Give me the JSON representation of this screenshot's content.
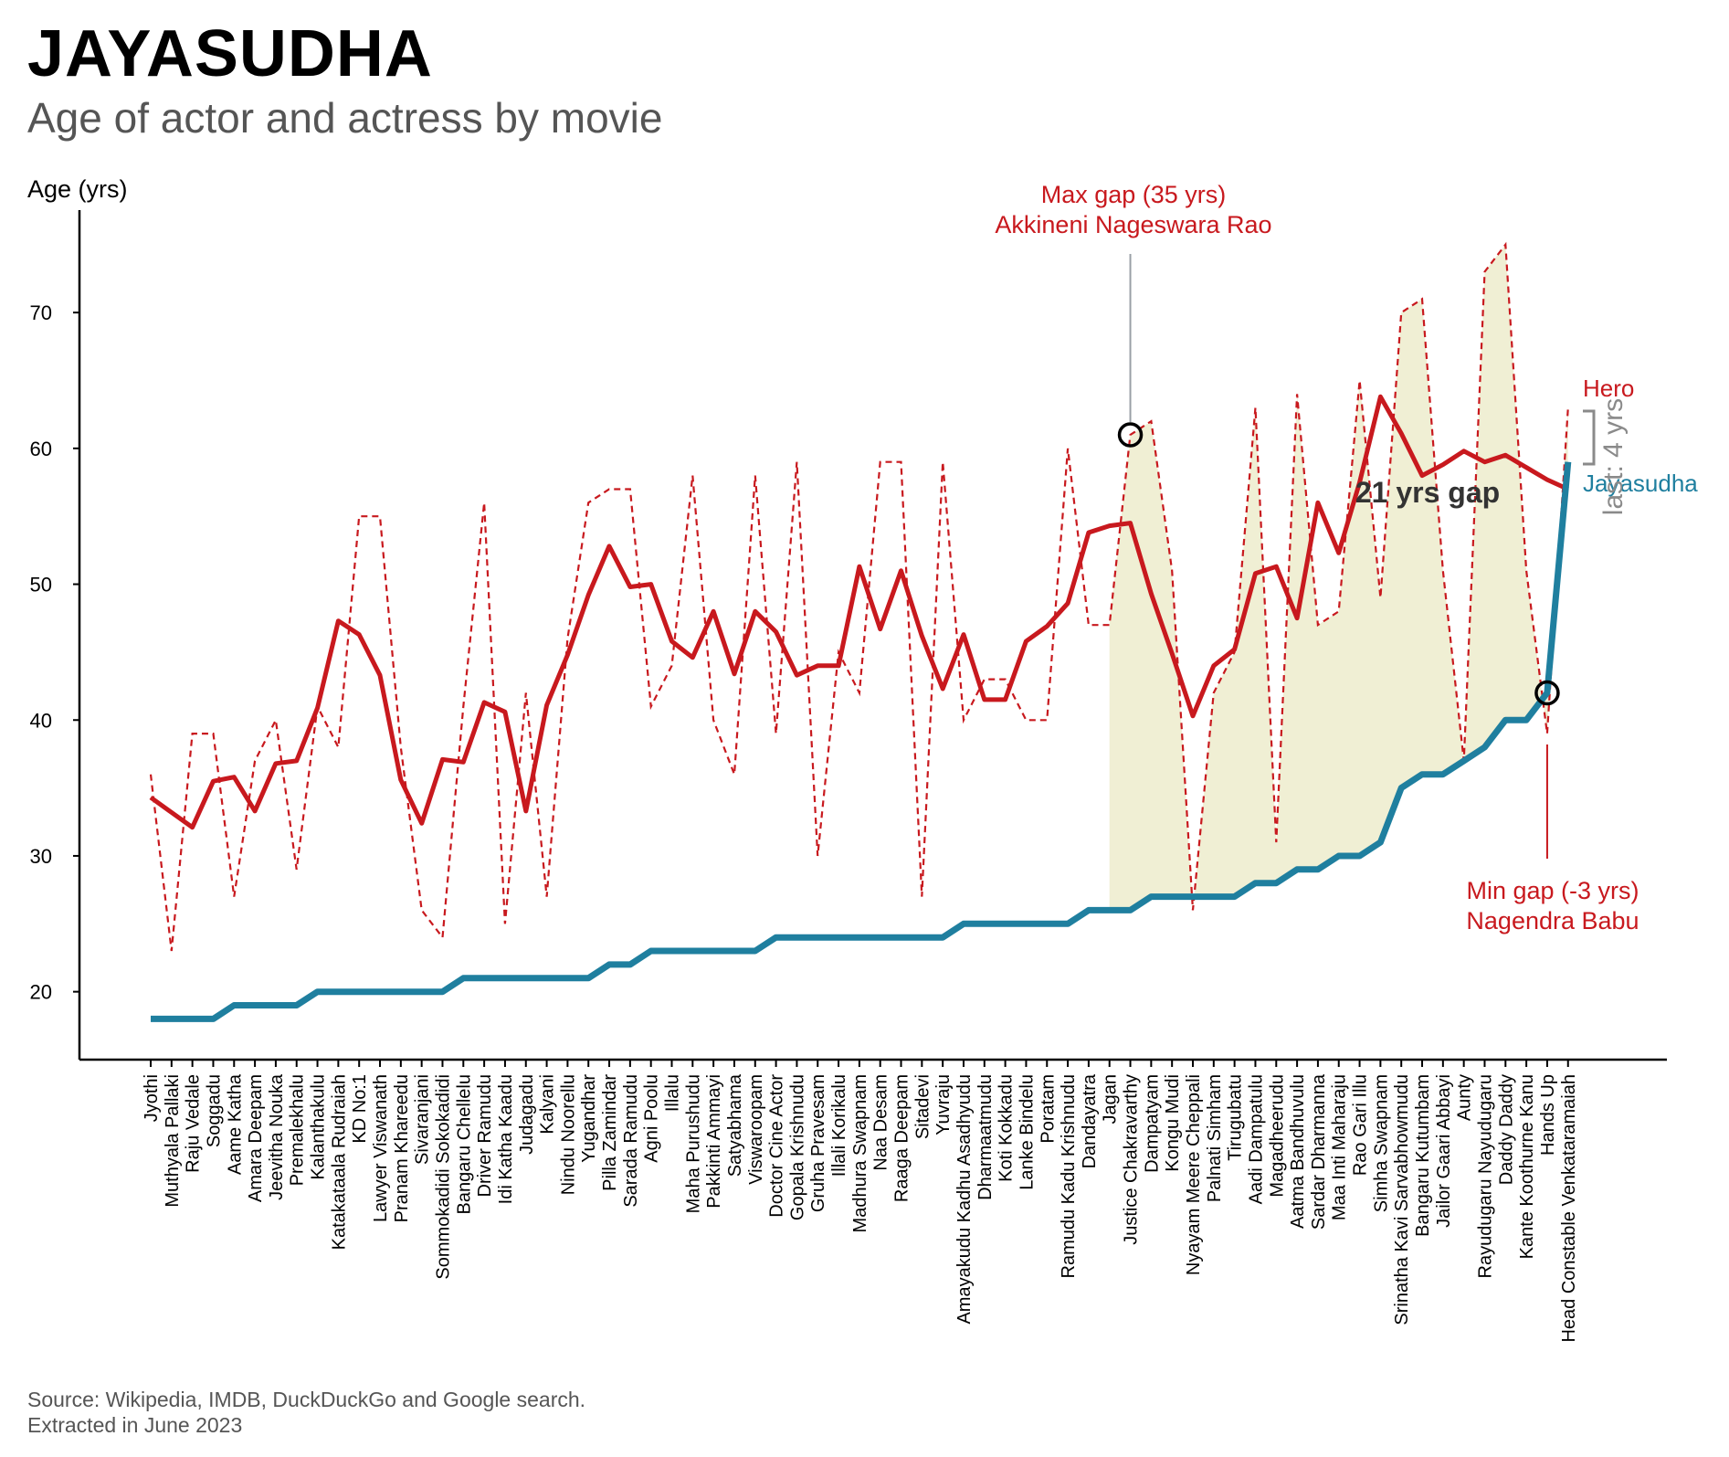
{
  "header": {
    "title": "JAYASUDHA",
    "subtitle": "Age of actor and actress by movie"
  },
  "footer": {
    "source_line1": "Source: Wikipedia, IMDB, DuckDuckGo and Google search.",
    "source_line2": "Extracted in June 2023"
  },
  "colors": {
    "hero": "#c8191e",
    "actress": "#1f7f9f",
    "gap_fill": "#eeedcf",
    "annotation_line": "#9aa0a6",
    "gray_text": "#8a8a8a"
  },
  "chart_data": {
    "type": "line",
    "ylabel": "Age (yrs)",
    "ylim": [
      15,
      78
    ],
    "yticks": [
      20,
      30,
      40,
      50,
      60,
      70
    ],
    "categories": [
      "Jyothi",
      "Muthyala Pallaki",
      "Raju Vedale",
      "Soggadu",
      "Aame Katha",
      "Amara Deepam",
      "Jeevitha Nouka",
      "Premalekhalu",
      "Kalanthakulu",
      "Katakataala Rudraiah",
      "KD No:1",
      "Lawyer Viswanath",
      "Pranam Khareedu",
      "Sivaranjani",
      "Sommokadidi Sokokadidi",
      "Bangaru Chellelu",
      "Driver Ramudu",
      "Idi Katha Kaadu",
      "Judagadu",
      "Kalyani",
      "Nindu Noorellu",
      "Yugandhar",
      "Pilla Zamindar",
      "Sarada Ramudu",
      "Agni Poolu",
      "Illalu",
      "Maha Purushudu",
      "Pakkinti Ammayi",
      "Satyabhama",
      "Viswaroopam",
      "Doctor Cine Actor",
      "Gopala Krishnudu",
      "Gruha Pravesam",
      "Illali Korikalu",
      "Madhura Swapnam",
      "Naa Desam",
      "Raaga Deepam",
      "Sitadevi",
      "Yuvraju",
      "Amayakudu Kadhu Asadhyudu",
      "Dharmaatmudu",
      "Koti Kokkadu",
      "Lanke Bindelu",
      "Poratam",
      "Ramudu Kadu Krishnudu",
      "Dandayatra",
      "Jagan",
      "Justice Chakravarthy",
      "Dampatyam",
      "Kongu Mudi",
      "Nyayam Meere Cheppali",
      "Palnati Simham",
      "Tirugubatu",
      "Aadi Dampatulu",
      "Magadheerudu",
      "Aatma Bandhuvulu",
      "Sardar Dharmanna",
      "Maa Inti Maharaju",
      "Rao Gari Illu",
      "Simha Swapnam",
      "Srinatha Kavi Sarvabhowmudu",
      "Bangaru Kutumbam",
      "Jailor Gaari Abbayi",
      "Aunty",
      "Rayudugaru Nayudugaru",
      "Daddy Daddy",
      "Kante Koothurne Kanu",
      "Hands Up",
      "Head Constable Venkataramaiah"
    ],
    "series": [
      {
        "name": "Hero",
        "style": "dashed",
        "values": [
          36,
          23,
          39,
          39,
          27,
          37,
          40,
          29,
          41,
          38,
          55,
          55,
          38,
          26,
          24,
          41,
          56,
          25,
          42,
          27,
          46,
          56,
          57,
          57,
          41,
          44,
          58,
          40,
          36,
          58,
          39,
          59,
          30,
          45,
          42,
          59,
          59,
          27,
          59,
          40,
          43,
          43,
          40,
          40,
          60,
          47,
          47,
          61,
          62,
          51,
          26,
          42,
          45,
          63,
          31,
          64,
          47,
          48,
          65,
          49,
          70,
          71,
          51,
          37,
          73,
          75,
          51,
          39,
          63
        ]
      },
      {
        "name": "",
        "style": "smoothed",
        "values": [
          34.3,
          33.2,
          32.1,
          35.5,
          35.8,
          33.3,
          36.8,
          37.0,
          40.9,
          47.3,
          46.3,
          43.3,
          35.6,
          32.4,
          37.1,
          36.9,
          41.3,
          40.6,
          33.3,
          41.1,
          44.8,
          49.2,
          52.8,
          49.8,
          50.0,
          45.8,
          44.6,
          48.0,
          43.4,
          48.0,
          46.5,
          43.3,
          44.0,
          44.0,
          51.3,
          46.7,
          51.0,
          46.2,
          42.3,
          46.3,
          41.5,
          41.5,
          45.8,
          46.9,
          48.6,
          53.8,
          54.3,
          54.5,
          49.3,
          44.9,
          40.3,
          44.0,
          45.2,
          50.8,
          51.3,
          47.5,
          56.0,
          52.3,
          57.5,
          63.8,
          61.1,
          58.0,
          58.8,
          59.8,
          59.0,
          59.5,
          58.6,
          57.7,
          57.0
        ]
      },
      {
        "name": "Jayasudha",
        "style": "solid",
        "values": [
          18,
          18,
          18,
          18,
          19,
          19,
          19,
          19,
          20,
          20,
          20,
          20,
          20,
          20,
          20,
          21,
          21,
          21,
          21,
          21,
          21,
          21,
          22,
          22,
          23,
          23,
          23,
          23,
          23,
          23,
          24,
          24,
          24,
          24,
          24,
          24,
          24,
          24,
          24,
          25,
          25,
          25,
          25,
          25,
          25,
          26,
          26,
          26,
          27,
          27,
          27,
          27,
          27,
          28,
          28,
          29,
          29,
          30,
          30,
          31,
          35,
          36,
          36,
          37,
          38,
          40,
          40,
          42,
          59
        ]
      }
    ],
    "gap_region_start": "Jagan",
    "annotations": {
      "max_gap": {
        "line1": "Max gap (35 yrs)",
        "line2": "Akkineni Nageswara Rao",
        "x": "Justice Chakravarthy",
        "y": 61
      },
      "min_gap": {
        "line1": "Min gap (-3 yrs)",
        "line2": "Nagendra Babu",
        "x": "Hands Up",
        "y": 42
      },
      "gap_label": "21 yrs gap",
      "last_gap_label": "last: 4 yrs",
      "hero_label": "Hero",
      "actress_label": "Jayasudha"
    }
  }
}
